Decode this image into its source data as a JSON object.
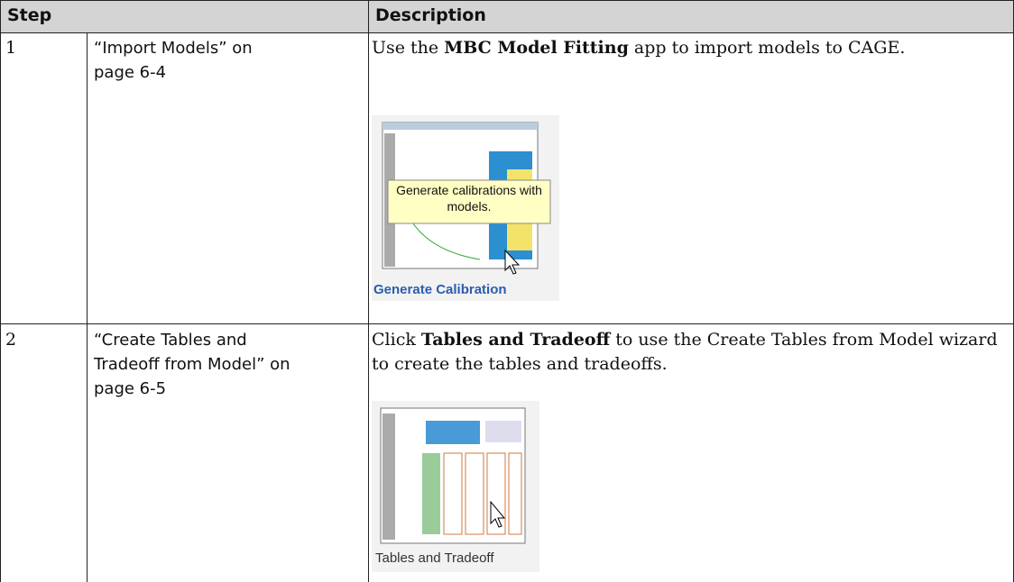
{
  "table": {
    "headers": [
      "Step",
      "Description"
    ],
    "rows": [
      {
        "step": "1",
        "link": "“Import Models” on page 6-4",
        "description": {
          "before": "Use the ",
          "bold": "MBC Model Fitting",
          "after": " app to import models to CAGE."
        },
        "image": {
          "tooltip": "Generate calibrations with models.",
          "caption": "Generate Calibration"
        }
      },
      {
        "step": "2",
        "link": "“Create Tables and Tradeoff from Model” on page 6-5",
        "description": {
          "before": "Click ",
          "bold": "Tables and Tradeoff",
          "after": " to use the Create Tables from Model wizard to create the tables and tradeoffs."
        },
        "image": {
          "caption": "Tables and Tradeoff"
        }
      }
    ]
  }
}
